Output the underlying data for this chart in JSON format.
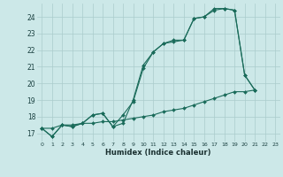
{
  "title": "",
  "xlabel": "Humidex (Indice chaleur)",
  "ylabel": "",
  "bg_color": "#cce8e8",
  "line_color": "#1a6b5a",
  "grid_color": "#aacccc",
  "xlim": [
    -0.5,
    23.5
  ],
  "ylim": [
    16.5,
    24.8
  ],
  "xticks": [
    0,
    1,
    2,
    3,
    4,
    5,
    6,
    7,
    8,
    9,
    10,
    11,
    12,
    13,
    14,
    15,
    16,
    17,
    18,
    19,
    20,
    21,
    22,
    23
  ],
  "yticks": [
    17,
    18,
    19,
    20,
    21,
    22,
    23,
    24
  ],
  "series1_x": [
    0,
    1,
    2,
    3,
    4,
    5,
    6,
    7,
    8,
    9,
    10,
    11,
    12,
    13,
    14,
    15,
    16,
    17,
    18,
    19,
    20,
    21
  ],
  "series1_y": [
    17.3,
    16.8,
    17.5,
    17.4,
    17.6,
    18.1,
    18.2,
    17.4,
    17.6,
    19.0,
    21.1,
    21.9,
    22.4,
    22.5,
    22.6,
    23.9,
    24.0,
    24.4,
    24.5,
    24.4,
    20.5,
    19.6
  ],
  "series2_x": [
    0,
    1,
    2,
    3,
    4,
    5,
    6,
    7,
    8,
    9,
    10,
    11,
    12,
    13,
    14,
    15,
    16,
    17,
    18,
    19,
    20,
    21
  ],
  "series2_y": [
    17.3,
    16.8,
    17.5,
    17.4,
    17.6,
    18.1,
    18.2,
    17.4,
    18.1,
    18.9,
    20.9,
    21.9,
    22.4,
    22.6,
    22.6,
    23.9,
    24.0,
    24.5,
    24.5,
    24.4,
    20.5,
    19.6
  ],
  "series3_x": [
    0,
    1,
    2,
    3,
    4,
    5,
    6,
    7,
    8,
    9,
    10,
    11,
    12,
    13,
    14,
    15,
    16,
    17,
    18,
    19,
    20,
    21
  ],
  "series3_y": [
    17.3,
    17.3,
    17.5,
    17.5,
    17.6,
    17.6,
    17.7,
    17.7,
    17.8,
    17.9,
    18.0,
    18.1,
    18.3,
    18.4,
    18.5,
    18.7,
    18.9,
    19.1,
    19.3,
    19.5,
    19.5,
    19.6
  ]
}
